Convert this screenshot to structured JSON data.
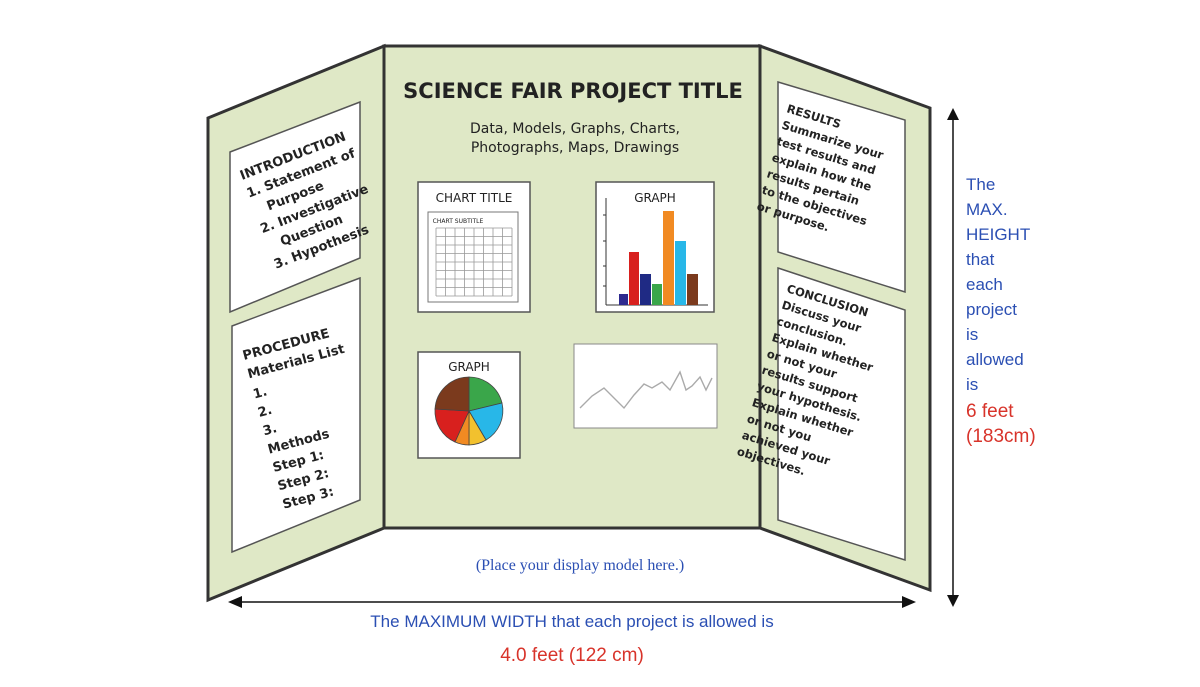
{
  "board": {
    "title": "SCIENCE FAIR PROJECT TITLE",
    "subtitle_line1": "Data, Models, Graphs, Charts,",
    "subtitle_line2": "Photographs, Maps, Drawings",
    "place_model": "(Place your display model here.)",
    "chart_title": "CHART TITLE",
    "chart_subtitle": "CHART SUBTITLE",
    "graph_label": "GRAPH",
    "pie_label": "GRAPH"
  },
  "left_panel": {
    "intro_lines": [
      "INTRODUCTION",
      "1. Statement of",
      "Purpose",
      "2. Investigative",
      "Question",
      "3. Hypothesis"
    ],
    "procedure_lines": [
      "PROCEDURE",
      "Materials List",
      "1.",
      "2.",
      "3.",
      "Methods",
      "Step 1:",
      "Step 2:",
      "Step 3:"
    ]
  },
  "right_panel": {
    "results_lines": [
      "RESULTS",
      "Summarize your",
      "test results and",
      "explain how the",
      "results pertain",
      "to the objectives",
      "or purpose."
    ],
    "conclusion_lines": [
      "CONCLUSION",
      "Discuss your",
      "conclusion.",
      "Explain whether",
      "or not your",
      "results support",
      "your hypothesis.",
      "Explain whether",
      "or not you",
      "achieved your",
      "objectives."
    ]
  },
  "height_note": {
    "lines": [
      "The",
      "MAX.",
      "HEIGHT",
      "that",
      "each",
      "project",
      "is",
      "allowed",
      "is"
    ],
    "value_line1": "6 feet",
    "value_line2": "(183cm)"
  },
  "width_note": {
    "text": "The MAXIMUM WIDTH that each project is allowed is",
    "value": "4.0 feet (122 cm)"
  },
  "colors": {
    "board": "#dfe8c6",
    "accent_blue": "#2b4fb3",
    "accent_red": "#d8332a"
  }
}
